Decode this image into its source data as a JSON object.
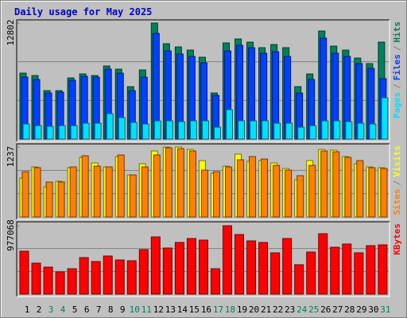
{
  "chart_data": [
    {
      "type": "bar",
      "title": "Daily usage for May 2025",
      "categories": [
        "1",
        "2",
        "3",
        "4",
        "5",
        "6",
        "7",
        "8",
        "9",
        "10",
        "11",
        "12",
        "13",
        "14",
        "15",
        "16",
        "17",
        "18",
        "19",
        "20",
        "21",
        "22",
        "23",
        "24",
        "25",
        "26",
        "27",
        "28",
        "29",
        "30",
        "31"
      ],
      "category_colors": [
        "#000000",
        "#000000",
        "#00805c",
        "#00805c",
        "#000000",
        "#000000",
        "#000000",
        "#000000",
        "#000000",
        "#00805c",
        "#00805c",
        "#000000",
        "#000000",
        "#000000",
        "#000000",
        "#000000",
        "#00805c",
        "#00805c",
        "#000000",
        "#000000",
        "#000000",
        "#000000",
        "#000000",
        "#00805c",
        "#00805c",
        "#000000",
        "#000000",
        "#000000",
        "#000000",
        "#000000",
        "#00805c"
      ],
      "legend_separator": "/",
      "ylim": [
        0,
        12802
      ],
      "yticks": [
        12802
      ],
      "grid": true,
      "series": [
        {
          "name": "Hits",
          "color": "#00805c",
          "values": [
            7277,
            7014,
            5348,
            5348,
            6751,
            7190,
            7014,
            8067,
            7716,
            5787,
            7628,
            12802,
            10522,
            10171,
            9820,
            9031,
            5085,
            10609,
            11048,
            10697,
            10083,
            10434,
            10083,
            5787,
            7190,
            11925,
            10259,
            9820,
            8943,
            8330,
            10697
          ]
        },
        {
          "name": "Files",
          "color": "#0040ff",
          "values": [
            6839,
            6576,
            5085,
            5173,
            6488,
            6927,
            6839,
            7716,
            7277,
            5348,
            6839,
            11661,
            9732,
            9382,
            9119,
            8417,
            4822,
            9732,
            10346,
            10083,
            9469,
            9645,
            9119,
            5085,
            6576,
            11135,
            9469,
            9119,
            8330,
            7804,
            6664
          ]
        },
        {
          "name": "Pages",
          "color": "#00e0ff",
          "values": [
            1666,
            1491,
            1403,
            1491,
            1491,
            1754,
            1754,
            2806,
            2367,
            1841,
            1666,
            2017,
            2017,
            1929,
            2017,
            2017,
            1315,
            3244,
            2017,
            2017,
            2017,
            1754,
            1754,
            1315,
            1491,
            2017,
            2017,
            1929,
            1754,
            1666,
            4559
          ]
        }
      ]
    },
    {
      "type": "bar",
      "ylim": [
        0,
        1237
      ],
      "yticks": [
        1237
      ],
      "grid": true,
      "series": [
        {
          "name": "Visits",
          "color": "#ffff00",
          "values": [
            689,
            886,
            534,
            633,
            872,
            1055,
            956,
            886,
            1069,
            745,
            942,
            1167,
            1237,
            1237,
            1195,
            998,
            773,
            900,
            1111,
            984,
            998,
            956,
            858,
            661,
            998,
            1195,
            1181,
            1069,
            942,
            886,
            872
          ]
        },
        {
          "name": "Sites",
          "color": "#ff8000",
          "values": [
            801,
            872,
            619,
            619,
            886,
            1083,
            900,
            886,
            1097,
            745,
            886,
            1097,
            1223,
            1209,
            1167,
            830,
            801,
            886,
            1012,
            1069,
            1026,
            914,
            830,
            731,
            914,
            1167,
            1153,
            1055,
            998,
            872,
            858
          ]
        }
      ]
    },
    {
      "type": "bar",
      "ylim": [
        0,
        977068
      ],
      "yticks": [
        977068
      ],
      "grid": true,
      "series": [
        {
          "name": "KBytes",
          "color": "#ff0000",
          "values": [
            613494,
            443079,
            386274,
            318108,
            363552,
            522606,
            465801,
            545328,
            488523,
            477162,
            636216,
            817992,
            658938,
            738465,
            795270,
            772548,
            363552,
            977068,
            852075,
            761187,
            738465,
            590772,
            795270,
            420357,
            602133,
            863436,
            670299,
            715743,
            590772,
            693021,
            704382
          ]
        }
      ]
    }
  ]
}
